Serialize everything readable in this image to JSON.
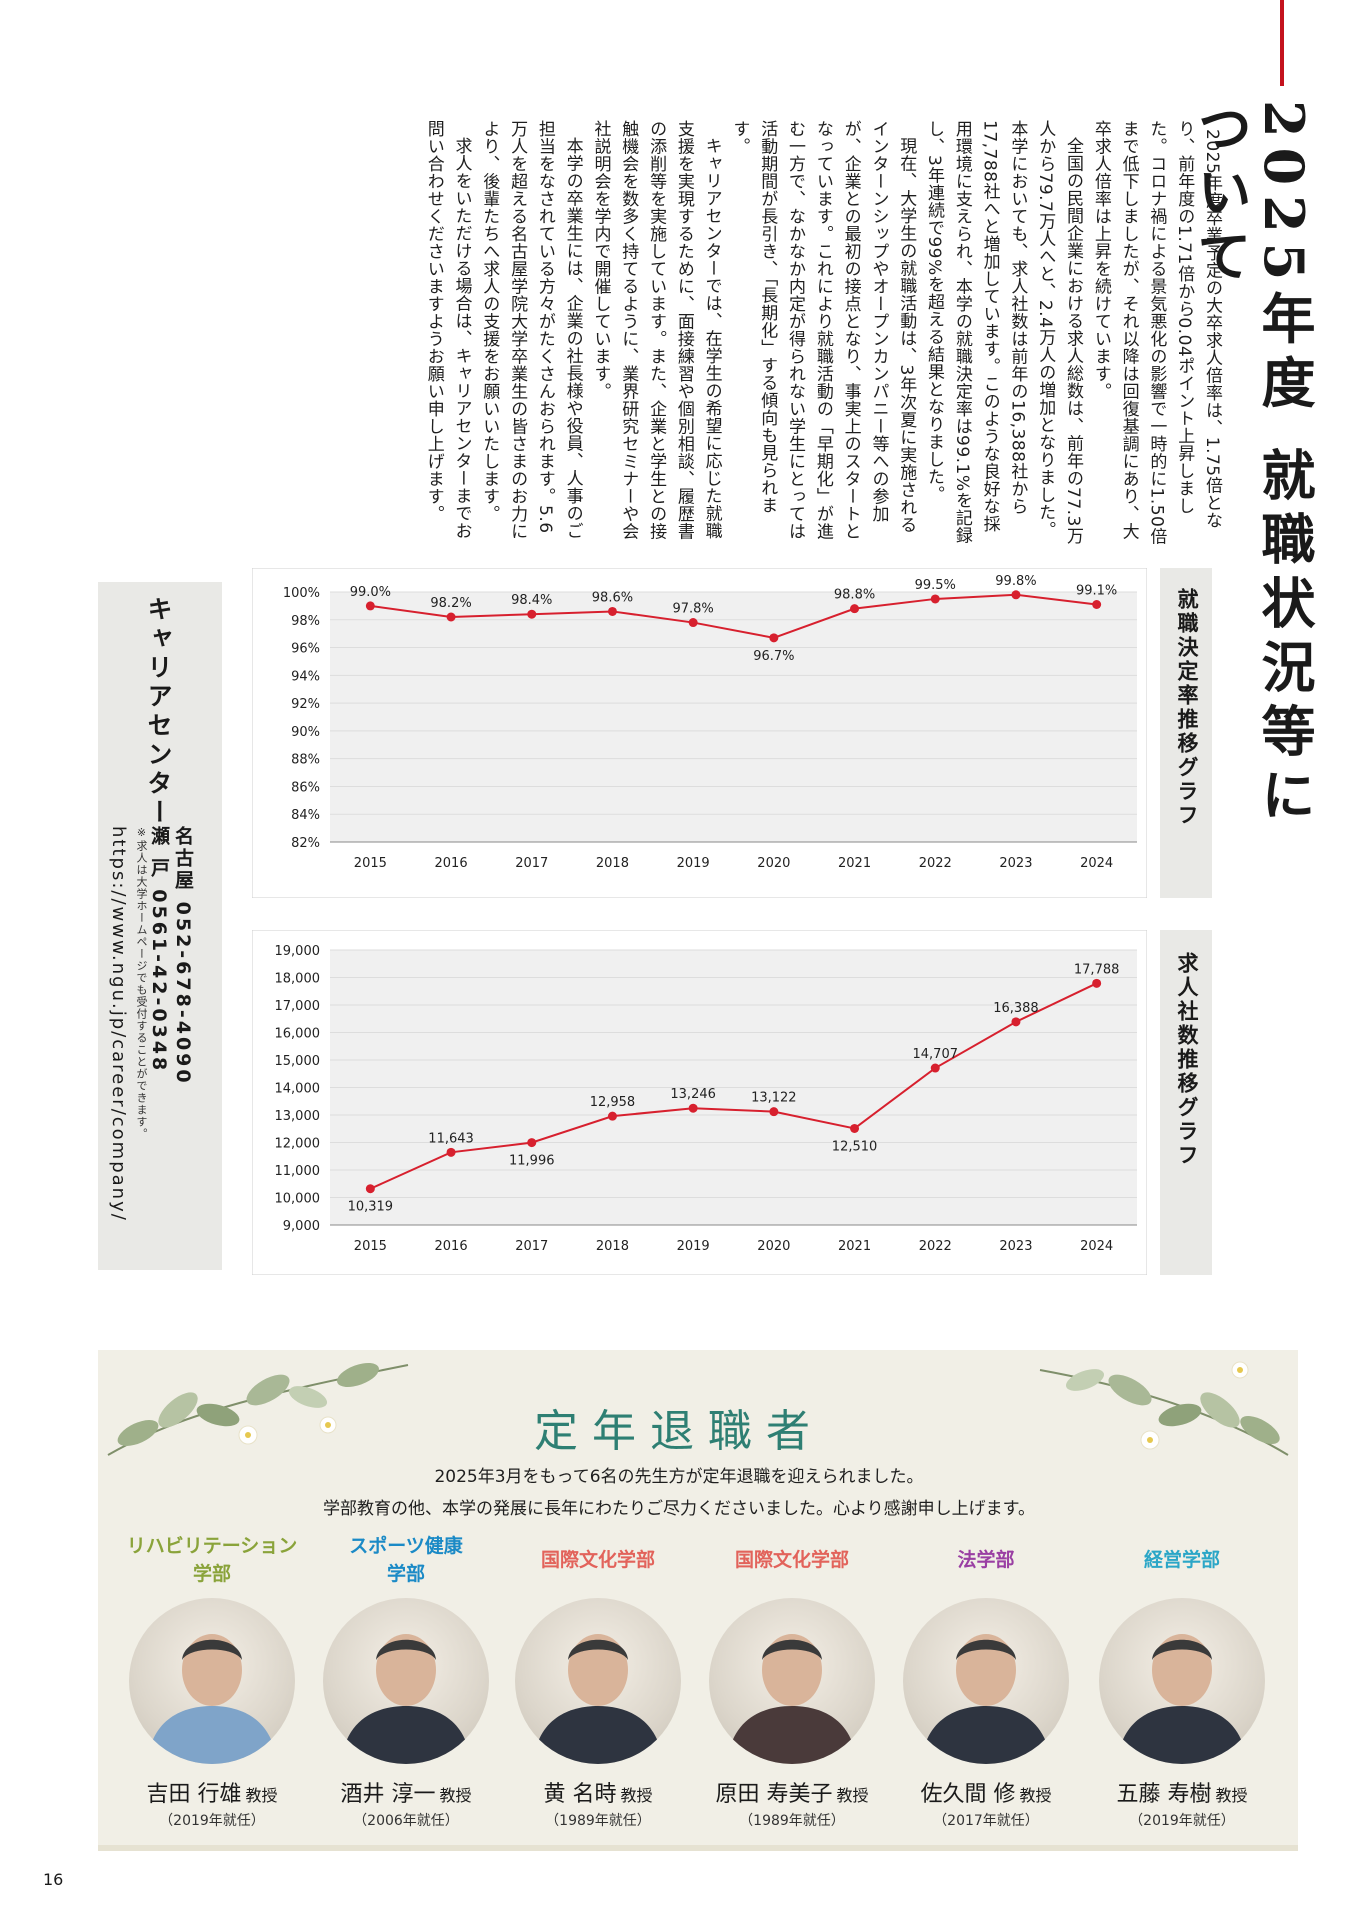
{
  "header": {
    "title": "2025年度 就職状況等について",
    "accent_color": "#c4121d"
  },
  "body": {
    "paragraphs": [
      "2025年度卒業予定の大卒求人倍率は、1.75倍となり、前年度の1.71倍から0.04ポイント上昇しました。コロナ禍による景気悪化の影響で一時的に1.50倍まで低下しましたが、それ以降は回復基調にあり、大卒求人倍率は上昇を続けています。",
      "全国の民間企業における求人総数は、前年の77.3万人から79.7万人へと、2.4万人の増加となりました。本学においても、求人社数は前年の16,388社から17,788社へと増加しています。このような良好な採用環境に支えられ、本学の就職決定率は99.1%を記録し、3年連続で99%を超える結果となりました。",
      "現在、大学生の就職活動は、3年次夏に実施されるインターンシップやオープンカンパニー等への参加が、企業との最初の接点となり、事実上のスタートとなっています。これにより就職活動の「早期化」が進む一方で、なかなか内定が得られない学生にとっては活動期間が長引き、「長期化」する傾向も見られます。",
      "キャリアセンターでは、在学生の希望に応じた就職支援を実現するために、面接練習や個別相談、履歴書の添削等を実施しています。また、企業と学生との接触機会を数多く持てるように、業界研究セミナーや会社説明会を学内で開催しています。",
      "本学の卒業生には、企業の社長様や役員、人事のご担当をなされている方々がたくさんおられます。5.6万人を超える名古屋学院大学卒業生の皆さまのお力により、後輩たちへ求人の支援をお願いいたします。",
      "求人をいただける場合は、キャリアセンターまでお問い合わせくださいますようお願い申し上げます。"
    ]
  },
  "career": {
    "title": "キャリアセンター",
    "nagoya_label": "名古屋",
    "nagoya_tel": "052-678-4090",
    "seto_label": "瀬 戸",
    "seto_tel": "0561-42-0348",
    "note": "※求人は大学ホームページでも受付することができます。",
    "url": "https://www.ngu.jp/career/company/"
  },
  "chart_data": [
    {
      "type": "line",
      "title": "就職決定率推移グラフ",
      "x": [
        2015,
        2016,
        2017,
        2018,
        2019,
        2020,
        2021,
        2022,
        2023,
        2024
      ],
      "values": [
        99.0,
        98.2,
        98.4,
        98.6,
        97.8,
        96.7,
        98.8,
        99.5,
        99.8,
        99.1
      ],
      "value_labels": [
        "99.0%",
        "98.2%",
        "98.4%",
        "98.6%",
        "97.8%",
        "96.7%",
        "98.8%",
        "99.5%",
        "99.8%",
        "99.1%"
      ],
      "ylim": [
        82,
        100
      ],
      "yticks": [
        82,
        84,
        86,
        88,
        90,
        92,
        94,
        96,
        98,
        100
      ],
      "ytick_labels": [
        "82%",
        "84%",
        "86%",
        "88%",
        "90%",
        "92%",
        "94%",
        "96%",
        "98%",
        "100%"
      ],
      "grid": true,
      "color": "#d7202e"
    },
    {
      "type": "line",
      "title": "求人社数推移グラフ",
      "x": [
        2015,
        2016,
        2017,
        2018,
        2019,
        2020,
        2021,
        2022,
        2023,
        2024
      ],
      "values": [
        10319,
        11643,
        11996,
        12958,
        13246,
        13122,
        12510,
        14707,
        16388,
        17788
      ],
      "value_labels": [
        "10,319",
        "11,643",
        "11,996",
        "12,958",
        "13,246",
        "13,122",
        "12,510",
        "14,707",
        "16,388",
        "17,788"
      ],
      "ylim": [
        9000,
        19000
      ],
      "yticks": [
        9000,
        10000,
        11000,
        12000,
        13000,
        14000,
        15000,
        16000,
        17000,
        18000,
        19000
      ],
      "ytick_labels": [
        "9,000",
        "10,000",
        "11,000",
        "12,000",
        "13,000",
        "14,000",
        "15,000",
        "16,000",
        "17,000",
        "18,000",
        "19,000"
      ],
      "grid": true,
      "color": "#d7202e"
    }
  ],
  "retirement": {
    "title": "定年退職者",
    "message1": "2025年3月をもって6名の先生方が定年退職を迎えられました。",
    "message2": "学部教育の他、本学の発展に長年にわたりご尽力くださいました。心より感謝申し上げます。",
    "title_color": "#2e7f73",
    "people": [
      {
        "dept": "リハビリテーション学部",
        "dept_color": "#8aa33a",
        "name": "吉田 行雄",
        "title": "教授",
        "year": "（2019年就任）"
      },
      {
        "dept": "スポーツ健康学部",
        "dept_color": "#1b8ac6",
        "name": "酒井 淳一",
        "title": "教授",
        "year": "（2006年就任）"
      },
      {
        "dept": "国際文化学部",
        "dept_color": "#e2635b",
        "name": "黄 名時",
        "title": "教授",
        "year": "（1989年就任）"
      },
      {
        "dept": "国際文化学部",
        "dept_color": "#e2635b",
        "name": "原田 寿美子",
        "title": "教授",
        "year": "（1989年就任）"
      },
      {
        "dept": "法学部",
        "dept_color": "#9a3fa3",
        "name": "佐久間 修",
        "title": "教授",
        "year": "（2017年就任）"
      },
      {
        "dept": "経営学部",
        "dept_color": "#2ba6c7",
        "name": "五藤 寿樹",
        "title": "教授",
        "year": "（2019年就任）"
      }
    ]
  },
  "footer": {
    "page_number": "16"
  }
}
